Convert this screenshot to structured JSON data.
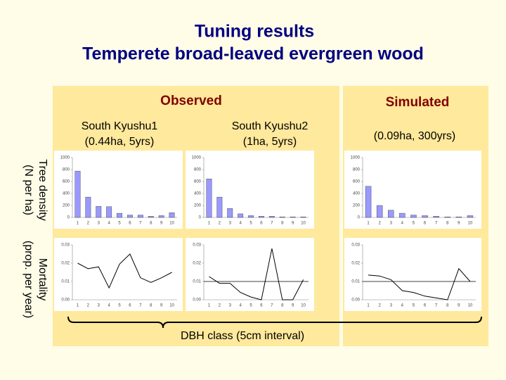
{
  "slide": {
    "title": [
      "Tuning results",
      "Temperete broad-leaved evergreen wood"
    ],
    "observed": "Observed",
    "simulated": "Simulated",
    "columns": [
      {
        "name": "South Kyushu1",
        "detail": "(0.44ha, 5yrs)"
      },
      {
        "name": "South Kyushu2",
        "detail": "(1ha, 5yrs)"
      }
    ],
    "sim_detail": "(0.09ha, 300yrs)",
    "rows": [
      [
        "Tree density",
        "(N per ha)"
      ],
      [
        "Mortality",
        "(prop. per year)"
      ]
    ],
    "x_label": "DBH class (5cm interval)"
  },
  "chart_data": [
    {
      "type": "bar",
      "categories": [
        "1",
        "2",
        "3",
        "4",
        "5",
        "6",
        "7",
        "8",
        "9",
        "10"
      ],
      "values": [
        775,
        340,
        185,
        180,
        70,
        40,
        40,
        20,
        30,
        80
      ],
      "color": "#9999ff",
      "ylim": [
        0,
        1000
      ],
      "yticks": [
        0,
        200,
        400,
        600,
        800,
        1000
      ]
    },
    {
      "type": "bar",
      "categories": [
        "1",
        "2",
        "3",
        "4",
        "5",
        "6",
        "7",
        "8",
        "9",
        "10"
      ],
      "values": [
        645,
        340,
        150,
        60,
        30,
        20,
        20,
        10,
        10,
        10
      ],
      "color": "#9999ff",
      "ylim": [
        0,
        1000
      ],
      "yticks": [
        0,
        200,
        400,
        600,
        800,
        1000
      ]
    },
    {
      "type": "bar",
      "categories": [
        "1",
        "2",
        "3",
        "4",
        "5",
        "6",
        "7",
        "8",
        "9",
        "10"
      ],
      "values": [
        520,
        200,
        120,
        70,
        40,
        30,
        20,
        10,
        10,
        30
      ],
      "color": "#9999ff",
      "ylim": [
        0,
        1000
      ],
      "yticks": [
        0,
        200,
        400,
        600,
        800,
        1000
      ]
    },
    {
      "type": "line",
      "categories": [
        "1",
        "2",
        "3",
        "4",
        "5",
        "6",
        "7",
        "8",
        "9",
        "10"
      ],
      "values": [
        0.02,
        0.017,
        0.018,
        0.0065,
        0.0195,
        0.025,
        0.012,
        0.0095,
        0.012,
        0.015
      ],
      "color": "#000000",
      "ylim": [
        0,
        0.03
      ],
      "yticks": [
        {
          "value": 0,
          "label": "0.00"
        },
        0.01,
        0.02,
        0.03
      ]
    },
    {
      "type": "line",
      "categories": [
        "1",
        "2",
        "3",
        "4",
        "5",
        "6",
        "7",
        "8",
        "9",
        "10"
      ],
      "values": [
        0.0127,
        0.009,
        0.009,
        0.004,
        0.0015,
        0,
        0.028,
        0,
        0,
        0.011
      ],
      "color": "#000000",
      "ylim": [
        0,
        0.03
      ],
      "yticks": [
        {
          "value": 0,
          "label": "0.00"
        },
        0.01,
        0.02,
        0.03
      ],
      "hline": 0.01
    },
    {
      "type": "line",
      "categories": [
        "1",
        "2",
        "3",
        "4",
        "5",
        "6",
        "7",
        "8",
        "9",
        "10"
      ],
      "values": [
        0.0135,
        0.013,
        0.011,
        0.005,
        0.004,
        0.002,
        0.001,
        0,
        0.017,
        0.01
      ],
      "color": "#000000",
      "ylim": [
        0,
        0.03
      ],
      "yticks": [
        {
          "value": 0,
          "label": "0.00"
        },
        0.01,
        0.02,
        0.03
      ],
      "hline": 0.01
    }
  ]
}
